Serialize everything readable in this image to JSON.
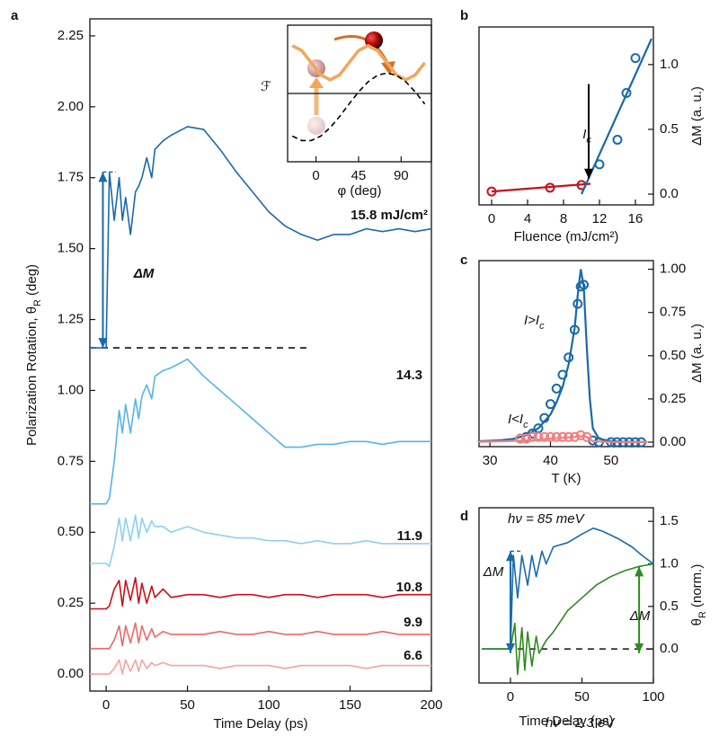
{
  "chart_data": [
    {
      "type": "line",
      "panel": "a",
      "x_label": "Time Delay (ps)",
      "y_label": [
        "Polarization Rotation, θ",
        "R",
        " (deg)"
      ],
      "xlim": [
        -10,
        200
      ],
      "ylim": [
        -0.06,
        2.31
      ],
      "xticks": [
        0,
        50,
        100,
        150,
        200
      ],
      "yticks": [
        {
          "value": 0,
          "label": "0.00"
        },
        {
          "value": 0.25,
          "label": "0.25"
        },
        {
          "value": 0.5,
          "label": "0.50"
        },
        {
          "value": 0.75,
          "label": "0.75"
        },
        {
          "value": 1,
          "label": "1.00"
        },
        {
          "value": 1.25,
          "label": "1.25"
        },
        {
          "value": 1.5,
          "label": "1.50"
        },
        {
          "value": 1.75,
          "label": "1.75"
        },
        {
          "value": 2,
          "label": "2.00"
        },
        {
          "value": 2.25,
          "label": "2.25"
        }
      ],
      "x": [
        -10,
        -5,
        0,
        2,
        5,
        8,
        10,
        12,
        15,
        18,
        20,
        22,
        25,
        28,
        30,
        35,
        40,
        50,
        60,
        70,
        80,
        90,
        100,
        110,
        120,
        130,
        140,
        150,
        160,
        170,
        180,
        190,
        200
      ],
      "series": [
        {
          "name": "15.8 mJ/cm²",
          "color": "#1a6aa8",
          "values": [
            1.15,
            1.15,
            1.15,
            1.77,
            1.6,
            1.75,
            1.6,
            1.68,
            1.55,
            1.7,
            1.72,
            1.75,
            1.82,
            1.75,
            1.85,
            1.88,
            1.9,
            1.93,
            1.92,
            1.85,
            1.77,
            1.7,
            1.63,
            1.58,
            1.55,
            1.53,
            1.55,
            1.55,
            1.57,
            1.56,
            1.57,
            1.56,
            1.57
          ]
        },
        {
          "name": "14.3",
          "color": "#55b4e8",
          "values": [
            0.6,
            0.6,
            0.6,
            0.62,
            0.75,
            0.93,
            0.85,
            0.95,
            0.85,
            0.97,
            0.9,
            0.98,
            1.02,
            0.97,
            1.05,
            1.07,
            1.08,
            1.11,
            1.05,
            1.0,
            0.95,
            0.9,
            0.85,
            0.8,
            0.8,
            0.81,
            0.81,
            0.82,
            0.82,
            0.81,
            0.82,
            0.82,
            0.82
          ]
        },
        {
          "name": "11.9",
          "color": "#8dd0f2",
          "values": [
            0.39,
            0.39,
            0.39,
            0.38,
            0.45,
            0.55,
            0.47,
            0.55,
            0.47,
            0.56,
            0.48,
            0.55,
            0.5,
            0.54,
            0.52,
            0.52,
            0.5,
            0.52,
            0.5,
            0.49,
            0.48,
            0.48,
            0.47,
            0.47,
            0.46,
            0.47,
            0.46,
            0.46,
            0.47,
            0.46,
            0.46,
            0.46,
            0.46
          ]
        },
        {
          "name": "10.8",
          "color": "#c8101a",
          "values": [
            0.23,
            0.23,
            0.23,
            0.24,
            0.3,
            0.33,
            0.24,
            0.33,
            0.26,
            0.34,
            0.25,
            0.32,
            0.25,
            0.31,
            0.27,
            0.3,
            0.27,
            0.28,
            0.28,
            0.27,
            0.28,
            0.28,
            0.27,
            0.28,
            0.28,
            0.27,
            0.28,
            0.28,
            0.28,
            0.27,
            0.28,
            0.28,
            0.28
          ]
        },
        {
          "name": "9.9",
          "color": "#ee6868",
          "values": [
            0.09,
            0.09,
            0.09,
            0.09,
            0.12,
            0.17,
            0.1,
            0.17,
            0.11,
            0.18,
            0.11,
            0.17,
            0.12,
            0.16,
            0.13,
            0.15,
            0.14,
            0.14,
            0.14,
            0.15,
            0.14,
            0.14,
            0.15,
            0.14,
            0.14,
            0.15,
            0.14,
            0.14,
            0.14,
            0.15,
            0.14,
            0.14,
            0.14
          ]
        },
        {
          "name": "6.6",
          "color": "#f4a3a3",
          "values": [
            0,
            0,
            0,
            0,
            0.02,
            0.05,
            0,
            0.05,
            0.01,
            0.05,
            0.01,
            0.05,
            0.02,
            0.04,
            0.03,
            0.04,
            0.03,
            0.03,
            0.03,
            0.02,
            0.03,
            0.03,
            0.03,
            0.02,
            0.03,
            0.03,
            0.03,
            0.03,
            0.02,
            0.03,
            0.03,
            0.03,
            0.03
          ]
        }
      ],
      "ref_lines": [
        {
          "y": 1.15,
          "x": [
            -10,
            125
          ]
        }
      ],
      "arrows": [
        {
          "label": "ΔM",
          "color": "#1a6aa8",
          "x": -2,
          "y": [
            1.15,
            1.77
          ],
          "double": true,
          "cap": [
            -2,
            6
          ]
        }
      ]
    },
    {
      "type": "line",
      "x_label": "φ (deg)",
      "y_label": "ℱ",
      "xlim": [
        -30,
        122
      ],
      "ylim": [
        -1,
        1
      ],
      "xticks": [
        0,
        45,
        90
      ],
      "x": [
        -25,
        -15,
        -5,
        5,
        15,
        25,
        35,
        45,
        55,
        65,
        75,
        85,
        95,
        105,
        115
      ],
      "series": [
        {
          "color": "#f2a65a",
          "width": 3.5,
          "values": [
            0.7,
            0.627,
            0.45,
            0.273,
            0.2,
            0.273,
            0.45,
            0.627,
            0.7,
            0.627,
            0.45,
            0.273,
            0.2,
            0.273,
            0.45
          ]
        },
        {
          "color": "#000000",
          "dash": true,
          "values": [
            -0.625,
            -0.69,
            -0.69,
            -0.625,
            -0.5,
            -0.337,
            -0.154,
            0.022,
            0.17,
            0.266,
            0.3,
            0.266,
            0.17,
            0.022,
            -0.154
          ]
        }
      ],
      "ref_lines": [
        {
          "y": 0,
          "x": [
            -30,
            122
          ],
          "solid": true
        }
      ]
    },
    {
      "type": "scatter",
      "panel": "b",
      "x_label": "Fluence (mJ/cm²)",
      "y_label": "ΔM (a. u.)",
      "xlim": [
        -1.4,
        18
      ],
      "ylim": [
        -0.083,
        1.29
      ],
      "xticks": [
        0,
        4,
        8,
        12,
        16
      ],
      "yticks": [
        {
          "value": 0,
          "label": "0.0"
        },
        {
          "value": 0.5,
          "label": "0.5"
        },
        {
          "value": 1,
          "label": "1.0"
        }
      ],
      "series": [
        {
          "color": "#c0141c",
          "x": [
            0,
            6.5,
            10
          ],
          "values": [
            0.02,
            0.05,
            0.07
          ],
          "fit": {
            "x": [
              0,
              11
            ],
            "values": [
              0.02,
              0.08
            ]
          }
        },
        {
          "color": "#1a6aa8",
          "x": [
            12,
            14,
            15,
            16
          ],
          "values": [
            0.23,
            0.42,
            0.78,
            1.05
          ],
          "fit": {
            "x": [
              10,
              17.8
            ],
            "values": [
              0,
              1.2
            ]
          }
        }
      ],
      "arrows": [
        {
          "label": [
            "I",
            "c"
          ],
          "color": "#000000",
          "x": 10.8,
          "y": [
            0.85,
            0.12
          ]
        }
      ]
    },
    {
      "type": "scatter",
      "panel": "c",
      "x_label": "T (K)",
      "y_label": "ΔM (a. u.)",
      "xlim": [
        28.2,
        57
      ],
      "ylim": [
        -0.026,
        1.05
      ],
      "xticks": [
        30,
        40,
        50
      ],
      "yticks": [
        {
          "value": 0,
          "label": "0.00"
        },
        {
          "value": 0.25,
          "label": "0.25"
        },
        {
          "value": 0.5,
          "label": "0.50"
        },
        {
          "value": 0.75,
          "label": "0.75"
        },
        {
          "value": 1,
          "label": "1.00"
        }
      ],
      "series": [
        {
          "name": [
            "I>I",
            "c"
          ],
          "color": "#1a6aa8",
          "x": [
            35,
            36,
            37,
            38,
            39,
            40,
            41,
            42,
            43,
            44,
            44.5,
            45,
            45.5,
            47,
            48,
            50,
            51,
            52,
            53,
            54,
            55
          ],
          "values": [
            0.02,
            0.03,
            0.05,
            0.08,
            0.14,
            0.22,
            0.31,
            0.39,
            0.49,
            0.65,
            0.8,
            0.9,
            0.91,
            0.01,
            0,
            0,
            0,
            0,
            0,
            0,
            0
          ],
          "fit": {
            "x": [
              28,
              30,
              32,
              34,
              36,
              38,
              40,
              41,
              42,
              43,
              44,
              44.5,
              45,
              45.5,
              46,
              46.5,
              47,
              48,
              50,
              52,
              56
            ],
            "values": [
              0.005,
              0.008,
              0.012,
              0.02,
              0.04,
              0.08,
              0.16,
              0.23,
              0.32,
              0.45,
              0.66,
              0.85,
              1.0,
              0.9,
              0.55,
              0.25,
              0.08,
              0.02,
              0.005,
              0.002,
              0.001
            ]
          }
        },
        {
          "name": [
            "I<I",
            "c"
          ],
          "color": "#f08080",
          "x": [
            35,
            36,
            37,
            38,
            39,
            40,
            41,
            42,
            43,
            44,
            45,
            46
          ],
          "values": [
            0.02,
            0.02,
            0.03,
            0.03,
            0.03,
            0.03,
            0.03,
            0.03,
            0.03,
            0.03,
            0.04,
            0.03
          ],
          "fit": {
            "x": [
              28,
              32,
              36,
              40,
              44,
              45,
              46,
              47,
              50,
              56
            ],
            "values": [
              0.002,
              0.005,
              0.01,
              0.02,
              0.03,
              0.035,
              0.03,
              0.005,
              0.001,
              0
            ]
          }
        }
      ]
    },
    {
      "type": "line",
      "panel": "d",
      "x_label": "Time Delay (ps)",
      "y_label": [
        "θ",
        "R",
        " (norm.)"
      ],
      "xlim": [
        -22,
        100
      ],
      "ylim": [
        -0.4,
        1.66
      ],
      "xticks": [
        0,
        50,
        100
      ],
      "yticks": [
        {
          "value": 0,
          "label": "0.0"
        },
        {
          "value": 0.5,
          "label": "0.5"
        },
        {
          "value": 1,
          "label": "1.0"
        },
        {
          "value": 1.5,
          "label": "1.5"
        }
      ],
      "series": [
        {
          "name": "hν = 85 meV",
          "color": "#1a6aa8",
          "x": [
            -20,
            -10,
            0,
            2,
            5,
            8,
            12,
            15,
            18,
            22,
            25,
            30,
            40,
            50,
            58,
            65,
            75,
            85,
            92,
            100
          ],
          "values": [
            0,
            0,
            0,
            1.1,
            0.6,
            1.1,
            0.75,
            1.1,
            0.85,
            1.15,
            1.0,
            1.2,
            1.25,
            1.35,
            1.42,
            1.38,
            1.3,
            1.2,
            1.1,
            1.0
          ]
        },
        {
          "name": "hν = 2.3 eV",
          "color": "#2e8b1e",
          "x": [
            -20,
            -10,
            0,
            3,
            5,
            8,
            10,
            12,
            15,
            18,
            20,
            25,
            30,
            40,
            50,
            60,
            70,
            80,
            90,
            100
          ],
          "values": [
            0,
            0,
            0,
            0.3,
            -0.3,
            0.25,
            -0.25,
            0.2,
            -0.2,
            0.15,
            -0.05,
            0.1,
            0.2,
            0.45,
            0.6,
            0.75,
            0.85,
            0.92,
            0.97,
            1.0
          ]
        }
      ],
      "ref_lines": [
        {
          "y": 0,
          "x": [
            5,
            100
          ]
        }
      ],
      "arrows": [
        {
          "label": "ΔM",
          "color": "#1a6aa8",
          "x": 0,
          "y": [
            -0.05,
            1.15
          ],
          "double": true,
          "cap": [
            0,
            8
          ]
        },
        {
          "label": "ΔM",
          "color": "#2e8b1e",
          "x": 90,
          "y": [
            -0.05,
            0.97
          ],
          "double": true
        }
      ]
    }
  ]
}
